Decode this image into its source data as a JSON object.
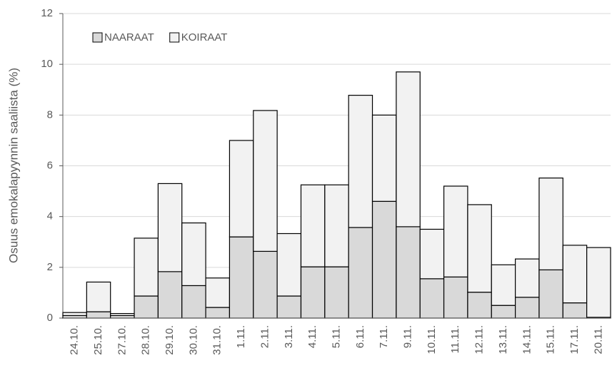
{
  "chart_data": {
    "type": "stacked_bar",
    "y_label": "Osuus emokalapyynnin saaliista (%)",
    "categories": [
      "24.10.",
      "25.10.",
      "27.10.",
      "28.10.",
      "29.10.",
      "30.10.",
      "31.10.",
      "1.11.",
      "2.11.",
      "3.11.",
      "4.11.",
      "5.11.",
      "6.11.",
      "7.11.",
      "9.11.",
      "10.11.",
      "11.11.",
      "12.11.",
      "13.11.",
      "14.11.",
      "15.11.",
      "17.11.",
      "20.11."
    ],
    "series": [
      {
        "name": "NAARAAT",
        "color": "#d9d9d9",
        "values": [
          0.1,
          0.25,
          0.1,
          0.87,
          1.83,
          1.28,
          0.42,
          3.2,
          2.63,
          0.87,
          2.02,
          2.02,
          3.57,
          4.6,
          3.6,
          1.55,
          1.62,
          1.02,
          0.5,
          0.82,
          1.9,
          0.6,
          0.03
        ]
      },
      {
        "name": "KOIRAAT",
        "color": "#f2f2f2",
        "values": [
          0.12,
          1.17,
          0.08,
          2.28,
          3.47,
          2.47,
          1.16,
          3.8,
          5.55,
          2.46,
          3.23,
          3.23,
          5.21,
          3.4,
          6.1,
          1.95,
          3.58,
          3.45,
          1.6,
          1.51,
          3.62,
          2.27,
          2.75
        ]
      }
    ],
    "ylim": [
      0,
      12
    ],
    "yticks": [
      0,
      2,
      4,
      6,
      8,
      10,
      12
    ],
    "grid": true,
    "legend": "top-left"
  }
}
